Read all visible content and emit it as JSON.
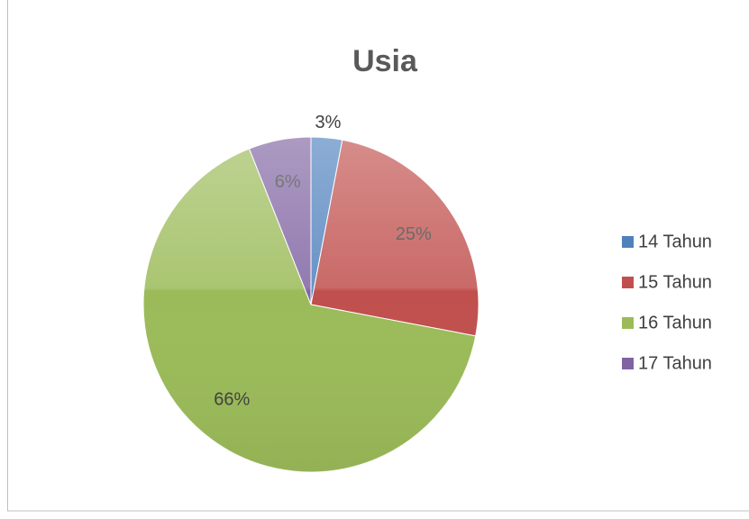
{
  "chart_data": {
    "type": "pie",
    "title": "Usia",
    "categories": [
      "14 Tahun",
      "15 Tahun",
      "16 Tahun",
      "17 Tahun"
    ],
    "values": [
      3,
      25,
      66,
      6
    ],
    "value_labels": [
      "3%",
      "25%",
      "66%",
      "6%"
    ],
    "colors": [
      "#4f81bd",
      "#c0504d",
      "#9bbb59",
      "#8064a2"
    ],
    "legend": "right"
  }
}
